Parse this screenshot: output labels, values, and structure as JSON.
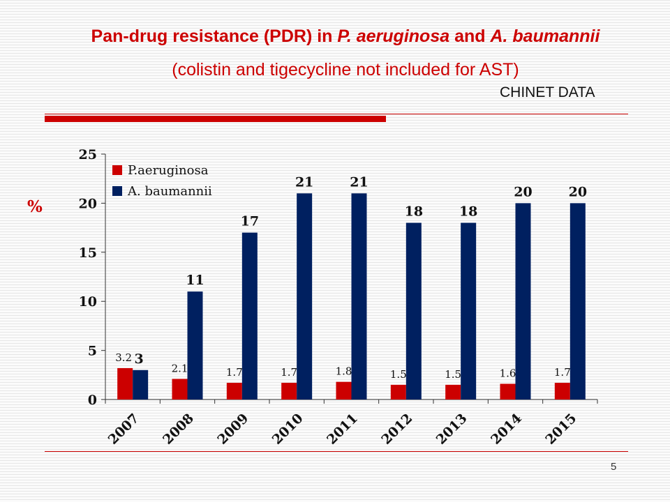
{
  "slide": {
    "title_prefix": "Pan-drug resistance (PDR) in ",
    "title_species1": "P. aeruginosa",
    "title_and": " and ",
    "title_species2": "A. baumannii",
    "title_line2": "(colistin and tigecycline not included for AST)",
    "source": "CHINET DATA",
    "page_number": "5",
    "accent_color": "#cc0000"
  },
  "chart_data": {
    "type": "bar",
    "title": "",
    "xlabel": "",
    "ylabel": "%",
    "ylim": [
      0,
      25
    ],
    "yticks": [
      0,
      5,
      10,
      15,
      20,
      25
    ],
    "grid": false,
    "legend_position": "top-left",
    "categories": [
      "2007",
      "2008",
      "2009",
      "2010",
      "2011",
      "2012",
      "2013",
      "2014",
      "2015"
    ],
    "series": [
      {
        "name": "P.aeruginosa",
        "color": "#cc0000",
        "values": [
          3.2,
          2.1,
          1.7,
          1.7,
          1.8,
          1.5,
          1.5,
          1.6,
          1.7
        ],
        "labels": [
          "3.2",
          "2.1",
          "1.7",
          "1.7",
          "1.8",
          "1.5",
          "1.5",
          "1.6",
          "1.7"
        ]
      },
      {
        "name": "A. baumannii",
        "color": "#002060",
        "values": [
          3,
          11,
          17,
          21,
          21,
          18,
          18,
          20,
          20
        ],
        "labels": [
          "3",
          "11",
          "17",
          "21",
          "21",
          "18",
          "18",
          "20",
          "20"
        ]
      }
    ]
  }
}
